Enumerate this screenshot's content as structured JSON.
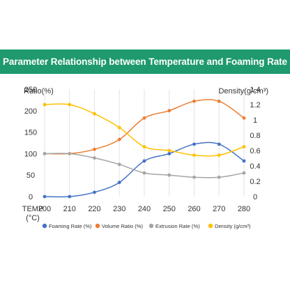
{
  "header": {
    "title": "Parameter Relationship between Temperature and Foaming Rate"
  },
  "chart_data": {
    "type": "line",
    "xlabel_line1": "TEMP",
    "xlabel_line2": "(°C)",
    "ylabel_left": "Ratio(%)",
    "ylabel_right": "Density(g/cm³)",
    "x": [
      200,
      210,
      220,
      230,
      240,
      250,
      260,
      270,
      280
    ],
    "x_tick_labels": [
      "200",
      "210",
      "220",
      "230",
      "240",
      "250",
      "260",
      "270",
      "280"
    ],
    "ylim_left": [
      0,
      250
    ],
    "y_left_ticks": [
      "0",
      "50",
      "100",
      "150",
      "200",
      "250"
    ],
    "ylim_right": [
      0,
      1.4
    ],
    "y_right_ticks": [
      "0",
      "0.2",
      "0.4",
      "0.6",
      "0.8",
      "1",
      "1.2",
      "1.4"
    ],
    "grid": "vertical",
    "legend_position": "bottom",
    "series": [
      {
        "name": "Foaming Rate (%)",
        "axis": "left",
        "color": "#4472c4",
        "values": [
          0,
          0,
          10,
          33,
          83,
          100,
          122,
          122,
          83
        ]
      },
      {
        "name": "Volume Ratio (%)",
        "axis": "left",
        "color": "#ed7d31",
        "values": [
          100,
          100,
          110,
          133,
          183,
          200,
          222,
          222,
          183
        ]
      },
      {
        "name": "Extrusion Rate (%)",
        "axis": "left",
        "color": "#a5a5a5",
        "values": [
          100,
          100,
          90,
          75,
          55,
          50,
          45,
          45,
          55
        ]
      },
      {
        "name": "Density (g/cm³)",
        "axis": "right",
        "color": "#ffc000",
        "values": [
          1.2,
          1.2,
          1.08,
          0.9,
          0.65,
          0.6,
          0.54,
          0.54,
          0.65
        ]
      }
    ]
  }
}
